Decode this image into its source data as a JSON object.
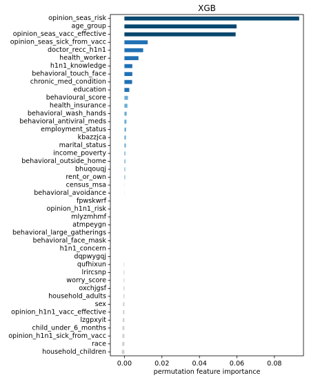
{
  "chart_data": {
    "type": "bar",
    "orientation": "horizontal",
    "title": "XGB",
    "xlabel": "permutation feature importance",
    "ylabel": "",
    "xlim": [
      -0.0075,
      0.0955
    ],
    "xticks": [
      0.0,
      0.02,
      0.04,
      0.06,
      0.08
    ],
    "xtick_labels": [
      "0.00",
      "0.02",
      "0.04",
      "0.06",
      "0.08"
    ],
    "grid": false,
    "legend": "none",
    "colors": {
      "high": "#08476e",
      "mid": "#2171b5",
      "low": "#6baed6",
      "faint": "#d0d0d0"
    },
    "categories": [
      "opinion_seas_risk",
      "age_group",
      "opinion_seas_vacc_effective",
      "opinion_seas_sick_from_vacc",
      "doctor_recc_h1n1",
      "health_worker",
      "h1n1_knowledge",
      "behavioral_touch_face",
      "chronic_med_condition",
      "education",
      "behavioural_score",
      "health_insurance",
      "behavioral_wash_hands",
      "behavioral_antiviral_meds",
      "employment_status",
      "kbazzjca",
      "marital_status",
      "income_poverty",
      "behavioral_outside_home",
      "bhuqouqj",
      "rent_or_own",
      "census_msa",
      "behavioral_avoidance",
      "fpwskwrf",
      "opinion_h1n1_risk",
      "mlyzmhmf",
      "atmpeygn",
      "behavioral_large_gatherings",
      "behavioral_face_mask",
      "h1n1_concern",
      "dqpwygqj",
      "qufhixun",
      "lrircsnp",
      "worry_score",
      "oxchjgsf",
      "household_adults",
      "sex",
      "opinion_h1n1_vacc_effective",
      "lzgpxyit",
      "child_under_6_months",
      "opinion_h1n1_sick_from_vacc",
      "race",
      "household_children"
    ],
    "values": [
      0.0932,
      0.0598,
      0.0593,
      0.0124,
      0.01,
      0.0075,
      0.0042,
      0.0042,
      0.0041,
      0.0026,
      0.0019,
      0.0016,
      0.0012,
      0.0011,
      0.0009,
      0.0008,
      0.0008,
      0.0005,
      0.0005,
      0.0004,
      0.0004,
      0.0001,
      0.0001,
      0.0,
      0.0,
      0.0,
      0.0,
      0.0,
      0.0,
      0.0,
      0.0,
      -0.0003,
      -0.0004,
      -0.0004,
      -0.0005,
      -0.0005,
      -0.0008,
      -0.0008,
      -0.0009,
      -0.0011,
      -0.0011,
      -0.0012,
      -0.0014
    ]
  }
}
